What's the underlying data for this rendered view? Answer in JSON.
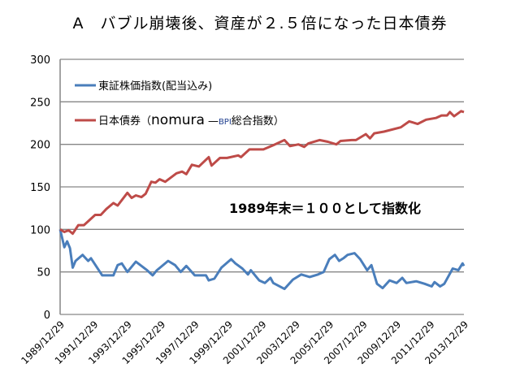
{
  "chart_data": {
    "type": "line",
    "title": "A　バブル崩壊後、資産が２.５倍になった日本債券",
    "annotation": "1989年末＝１００として指数化",
    "ylim": [
      0,
      300
    ],
    "yticks": [
      "0",
      "50",
      "100",
      "150",
      "200",
      "250",
      "300"
    ],
    "xticks": [
      "1989/12/29",
      "1991/12/29",
      "1993/12/29",
      "1995/12/29",
      "1997/12/29",
      "1999/12/29",
      "2001/12/29",
      "2003/12/29",
      "2005/12/29",
      "2007/12/29",
      "2009/12/29",
      "2011/12/29",
      "2013/12/29"
    ],
    "xlim": [
      "1989-12",
      "2013-12"
    ],
    "grid": "horizontal",
    "legend_position": "top-left",
    "series": [
      {
        "name": "東証株価指数(配当込み)",
        "color": "#4a7ebb",
        "points": [
          [
            "1989-12",
            100
          ],
          [
            "1990-03",
            79
          ],
          [
            "1990-05",
            86
          ],
          [
            "1990-07",
            78
          ],
          [
            "1990-09",
            55
          ],
          [
            "1990-11",
            63
          ],
          [
            "1991-04",
            70
          ],
          [
            "1991-08",
            63
          ],
          [
            "1991-10",
            66
          ],
          [
            "1992-06",
            46
          ],
          [
            "1993-02",
            46
          ],
          [
            "1993-05",
            58
          ],
          [
            "1993-08",
            60
          ],
          [
            "1993-12",
            50
          ],
          [
            "1994-06",
            62
          ],
          [
            "1995-02",
            52
          ],
          [
            "1995-06",
            46
          ],
          [
            "1995-09",
            52
          ],
          [
            "1996-05",
            63
          ],
          [
            "1996-10",
            58
          ],
          [
            "1997-02",
            50
          ],
          [
            "1997-06",
            57
          ],
          [
            "1997-12",
            46
          ],
          [
            "1998-08",
            46
          ],
          [
            "1998-10",
            40
          ],
          [
            "1999-02",
            42
          ],
          [
            "1999-07",
            55
          ],
          [
            "2000-02",
            65
          ],
          [
            "2000-05",
            60
          ],
          [
            "2000-10",
            54
          ],
          [
            "2001-02",
            47
          ],
          [
            "2001-04",
            52
          ],
          [
            "2001-10",
            40
          ],
          [
            "2002-02",
            37
          ],
          [
            "2002-06",
            43
          ],
          [
            "2002-08",
            37
          ],
          [
            "2003-04",
            30
          ],
          [
            "2003-10",
            41
          ],
          [
            "2004-04",
            47
          ],
          [
            "2004-10",
            44
          ],
          [
            "2005-04",
            47
          ],
          [
            "2005-08",
            50
          ],
          [
            "2005-12",
            65
          ],
          [
            "2006-04",
            70
          ],
          [
            "2006-07",
            63
          ],
          [
            "2006-10",
            66
          ],
          [
            "2007-01",
            70
          ],
          [
            "2007-06",
            72
          ],
          [
            "2007-10",
            65
          ],
          [
            "2008-03",
            52
          ],
          [
            "2008-06",
            58
          ],
          [
            "2008-10",
            36
          ],
          [
            "2009-02",
            31
          ],
          [
            "2009-07",
            40
          ],
          [
            "2009-12",
            37
          ],
          [
            "2010-04",
            43
          ],
          [
            "2010-07",
            37
          ],
          [
            "2011-02",
            39
          ],
          [
            "2011-08",
            36
          ],
          [
            "2012-01",
            33
          ],
          [
            "2012-03",
            38
          ],
          [
            "2012-07",
            33
          ],
          [
            "2012-10",
            36
          ],
          [
            "2013-04",
            54
          ],
          [
            "2013-08",
            52
          ],
          [
            "2013-11",
            60
          ],
          [
            "2013-12",
            57
          ]
        ]
      },
      {
        "name_prefix": "日本債券（",
        "name_brand": "nomura",
        "name_dash": "—",
        "name_bpi": "BPI",
        "name_suffix": "総合指数）",
        "color": "#be4b48",
        "points": [
          [
            "1989-12",
            100
          ],
          [
            "1990-03",
            97
          ],
          [
            "1990-06",
            99
          ],
          [
            "1990-09",
            95
          ],
          [
            "1991-01",
            105
          ],
          [
            "1991-05",
            105
          ],
          [
            "1992-01",
            117
          ],
          [
            "1992-05",
            117
          ],
          [
            "1992-09",
            124
          ],
          [
            "1993-02",
            131
          ],
          [
            "1993-05",
            128
          ],
          [
            "1993-12",
            143
          ],
          [
            "1994-03",
            137
          ],
          [
            "1994-06",
            140
          ],
          [
            "1994-10",
            138
          ],
          [
            "1995-01",
            142
          ],
          [
            "1995-05",
            156
          ],
          [
            "1995-08",
            155
          ],
          [
            "1995-11",
            159
          ],
          [
            "1996-03",
            156
          ],
          [
            "1996-11",
            166
          ],
          [
            "1997-03",
            168
          ],
          [
            "1997-06",
            165
          ],
          [
            "1997-10",
            176
          ],
          [
            "1998-03",
            174
          ],
          [
            "1998-10",
            185
          ],
          [
            "1998-12",
            175
          ],
          [
            "1999-06",
            184
          ],
          [
            "1999-11",
            184
          ],
          [
            "2000-07",
            187
          ],
          [
            "2000-09",
            185
          ],
          [
            "2001-03",
            194
          ],
          [
            "2002-01",
            194
          ],
          [
            "2002-08",
            199
          ],
          [
            "2003-04",
            205
          ],
          [
            "2003-08",
            198
          ],
          [
            "2004-02",
            200
          ],
          [
            "2004-06",
            197
          ],
          [
            "2004-09",
            201
          ],
          [
            "2005-05",
            205
          ],
          [
            "2005-11",
            203
          ],
          [
            "2006-05",
            200
          ],
          [
            "2006-08",
            204
          ],
          [
            "2007-04",
            205
          ],
          [
            "2007-07",
            205
          ],
          [
            "2008-02",
            212
          ],
          [
            "2008-05",
            207
          ],
          [
            "2008-08",
            213
          ],
          [
            "2009-03",
            215
          ],
          [
            "2010-03",
            220
          ],
          [
            "2010-09",
            227
          ],
          [
            "2011-03",
            224
          ],
          [
            "2011-09",
            229
          ],
          [
            "2012-04",
            231
          ],
          [
            "2012-08",
            234
          ],
          [
            "2012-12",
            234
          ],
          [
            "2013-02",
            238
          ],
          [
            "2013-05",
            233
          ],
          [
            "2013-10",
            239
          ],
          [
            "2013-12",
            238
          ]
        ]
      }
    ]
  }
}
